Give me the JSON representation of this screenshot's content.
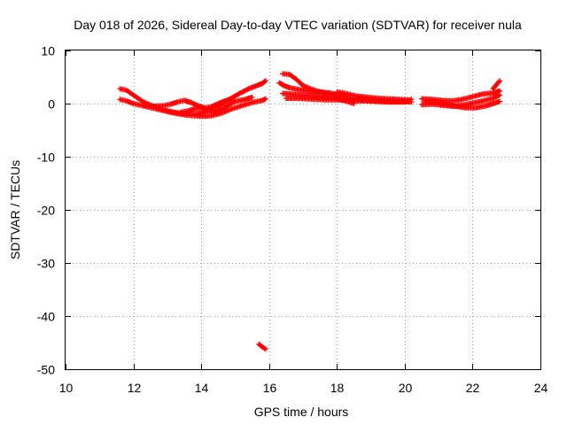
{
  "chart_data": {
    "type": "scatter",
    "title": "Day 018 of 2026, Sidereal Day-to-day VTEC variation (SDTVAR) for receiver nula",
    "xlabel": "GPS time / hours",
    "ylabel": "SDTVAR / TECUs",
    "xlim": [
      10,
      24
    ],
    "ylim": [
      -50,
      10
    ],
    "xticks": [
      10,
      12,
      14,
      16,
      18,
      20,
      22,
      24
    ],
    "yticks": [
      10,
      0,
      -10,
      -20,
      -30,
      -40,
      -50
    ],
    "grid": true,
    "marker": "+",
    "series": [
      {
        "name": "SDTVAR",
        "color": "#ff0000",
        "tracks": [
          [
            [
              11.6,
              2.8
            ],
            [
              11.8,
              2.5
            ],
            [
              12.0,
              1.6
            ],
            [
              12.3,
              0.3
            ],
            [
              12.7,
              -0.8
            ],
            [
              13.1,
              -1.5
            ],
            [
              13.5,
              -1.9
            ],
            [
              13.9,
              -1.9
            ],
            [
              14.2,
              -1.4
            ],
            [
              14.5,
              -0.5
            ],
            [
              14.8,
              0.7
            ],
            [
              15.1,
              1.8
            ],
            [
              15.4,
              2.8
            ],
            [
              15.6,
              3.3
            ],
            [
              15.8,
              3.8
            ],
            [
              15.9,
              4.3
            ]
          ],
          [
            [
              11.6,
              0.8
            ],
            [
              11.8,
              0.5
            ],
            [
              12.0,
              0.0
            ],
            [
              12.4,
              -0.6
            ],
            [
              12.8,
              -1.2
            ],
            [
              13.2,
              -1.8
            ],
            [
              13.6,
              -2.2
            ],
            [
              14.0,
              -2.4
            ],
            [
              14.3,
              -2.3
            ],
            [
              14.6,
              -1.8
            ],
            [
              14.9,
              -1.0
            ],
            [
              15.2,
              -0.4
            ],
            [
              15.5,
              0.2
            ],
            [
              15.8,
              0.6
            ],
            [
              15.9,
              0.9
            ]
          ],
          [
            [
              12.3,
              -0.3
            ],
            [
              12.6,
              -0.5
            ],
            [
              12.9,
              -0.4
            ],
            [
              13.1,
              -0.1
            ],
            [
              13.3,
              0.3
            ],
            [
              13.5,
              0.6
            ],
            [
              13.7,
              0.2
            ],
            [
              13.9,
              -0.4
            ],
            [
              14.1,
              -0.8
            ],
            [
              14.3,
              -0.6
            ],
            [
              14.5,
              0.0
            ],
            [
              14.7,
              0.5
            ],
            [
              14.9,
              0.9
            ]
          ],
          [
            [
              13.4,
              -1.6
            ],
            [
              13.6,
              -1.4
            ],
            [
              13.8,
              -1.0
            ],
            [
              14.0,
              -0.9
            ],
            [
              14.2,
              -1.2
            ],
            [
              14.4,
              -1.6
            ],
            [
              14.6,
              -1.1
            ],
            [
              14.8,
              -0.3
            ],
            [
              15.0,
              0.4
            ],
            [
              15.3,
              0.8
            ],
            [
              15.5,
              1.2
            ]
          ],
          [
            [
              15.7,
              -45.3
            ],
            [
              15.8,
              -45.8
            ],
            [
              15.9,
              -46.2
            ]
          ],
          [
            [
              16.4,
              5.6
            ],
            [
              16.6,
              5.5
            ],
            [
              16.8,
              4.6
            ],
            [
              17.0,
              3.4
            ],
            [
              17.3,
              2.6
            ],
            [
              17.6,
              2.0
            ],
            [
              17.9,
              1.6
            ],
            [
              18.1,
              1.4
            ]
          ],
          [
            [
              16.4,
              3.5
            ],
            [
              16.6,
              3.0
            ],
            [
              16.9,
              2.6
            ],
            [
              17.2,
              2.3
            ],
            [
              17.5,
              2.2
            ],
            [
              17.8,
              2.0
            ],
            [
              18.1,
              1.5
            ],
            [
              18.4,
              1.1
            ],
            [
              18.7,
              0.8
            ],
            [
              19.0,
              0.6
            ],
            [
              19.3,
              0.5
            ],
            [
              19.6,
              0.4
            ],
            [
              19.9,
              0.4
            ],
            [
              20.2,
              0.3
            ]
          ],
          [
            [
              16.4,
              1.9
            ],
            [
              16.7,
              1.8
            ],
            [
              17.0,
              1.6
            ],
            [
              17.3,
              1.5
            ],
            [
              17.6,
              1.3
            ],
            [
              17.9,
              1.1
            ],
            [
              18.2,
              0.6
            ],
            [
              18.5,
              0.0
            ]
          ],
          [
            [
              16.5,
              1.0
            ],
            [
              16.8,
              1.0
            ],
            [
              17.1,
              0.9
            ],
            [
              17.4,
              0.8
            ],
            [
              17.7,
              0.7
            ],
            [
              18.0,
              0.7
            ],
            [
              18.3,
              0.6
            ],
            [
              18.6,
              0.5
            ],
            [
              18.9,
              0.5
            ],
            [
              19.2,
              0.4
            ],
            [
              19.5,
              0.3
            ],
            [
              19.8,
              0.3
            ],
            [
              20.0,
              0.3
            ],
            [
              20.2,
              0.8
            ]
          ],
          [
            [
              18.0,
              2.2
            ],
            [
              18.2,
              2.0
            ],
            [
              18.4,
              1.7
            ],
            [
              18.6,
              1.4
            ],
            [
              18.9,
              1.2
            ],
            [
              19.2,
              1.0
            ],
            [
              19.5,
              0.9
            ],
            [
              19.8,
              0.8
            ],
            [
              20.1,
              0.7
            ]
          ],
          [
            [
              16.3,
              3.9
            ],
            [
              16.4,
              3.6
            ]
          ],
          [
            [
              20.5,
              0.9
            ],
            [
              20.8,
              0.8
            ],
            [
              21.1,
              0.6
            ],
            [
              21.4,
              0.5
            ],
            [
              21.7,
              0.8
            ],
            [
              22.0,
              1.3
            ],
            [
              22.3,
              1.8
            ],
            [
              22.6,
              2.0
            ],
            [
              22.8,
              2.4
            ]
          ],
          [
            [
              20.5,
              -0.2
            ],
            [
              20.8,
              -0.1
            ],
            [
              21.1,
              -0.3
            ],
            [
              21.4,
              -0.5
            ],
            [
              21.7,
              -0.3
            ],
            [
              22.0,
              0.1
            ],
            [
              22.3,
              0.5
            ],
            [
              22.6,
              1.0
            ],
            [
              22.8,
              1.6
            ]
          ],
          [
            [
              20.6,
              0.4
            ],
            [
              20.9,
              0.3
            ],
            [
              21.2,
              -0.1
            ],
            [
              21.5,
              -0.5
            ],
            [
              21.8,
              -0.8
            ],
            [
              22.1,
              -0.8
            ],
            [
              22.4,
              -0.4
            ],
            [
              22.6,
              0.0
            ],
            [
              22.8,
              0.4
            ]
          ],
          [
            [
              22.6,
              2.8
            ],
            [
              22.7,
              3.5
            ],
            [
              22.8,
              4.3
            ]
          ]
        ]
      }
    ]
  }
}
